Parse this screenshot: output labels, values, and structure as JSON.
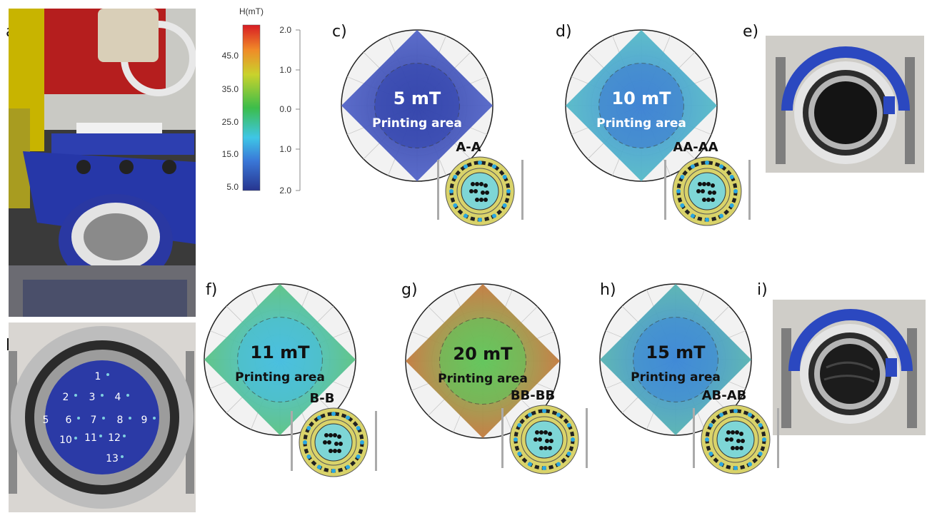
{
  "panels": {
    "a": "a)",
    "b": "b)",
    "c": "c)",
    "d": "d)",
    "e": "e)",
    "f": "f)",
    "g": "g)",
    "h": "h)",
    "i": "i)"
  },
  "colorbar": {
    "title": "H(mT)",
    "left_ticks": [
      "45.0",
      "35.0",
      "25.0",
      "15.0",
      "5.0"
    ],
    "right_ticks": [
      "2.0",
      "1.0",
      "0.0",
      "1.0",
      "2.0"
    ]
  },
  "maps": [
    {
      "id": "c",
      "value": "5 mT",
      "area": "Printing area",
      "config": "A-A",
      "label_color": "#ffffff"
    },
    {
      "id": "d",
      "value": "10 mT",
      "area": "Printing area",
      "config": "AA-AA",
      "label_color": "#ffffff"
    },
    {
      "id": "f",
      "value": "11 mT",
      "area": "Printing area",
      "config": "B-B",
      "label_color": "#111111"
    },
    {
      "id": "g",
      "value": "20 mT",
      "area": "Printing area",
      "config": "BB-BB",
      "label_color": "#111111"
    },
    {
      "id": "h",
      "value": "15 mT",
      "area": "Printing area",
      "config": "AB-AB",
      "label_color": "#111111"
    }
  ],
  "measurement_points": [
    "1",
    "2",
    "3",
    "4",
    "5",
    "6",
    "7",
    "8",
    "9",
    "10",
    "11",
    "12",
    "13"
  ]
}
